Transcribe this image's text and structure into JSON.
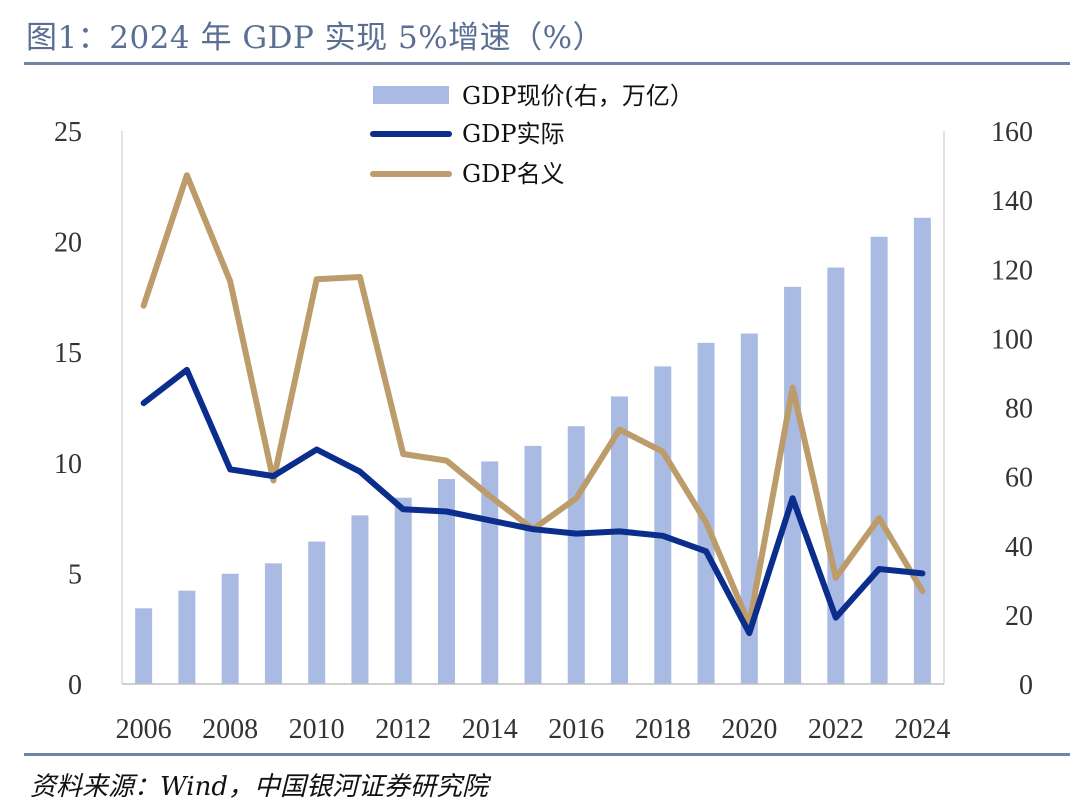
{
  "title": "图1：2024 年 GDP 实现 5%增速（%）",
  "source": "资料来源：Wind，中国银河证券研究院",
  "colors": {
    "bars": "#a9bae3",
    "real_line": "#0b2d8c",
    "nominal_line": "#bd9c6c",
    "rule": "#6f84a8",
    "title": "#5a6f93"
  },
  "chart_data": {
    "type": "bar+line",
    "title": "图1：2024 年 GDP 实现 5%增速（%）",
    "categories": [
      2006,
      2007,
      2008,
      2009,
      2010,
      2011,
      2012,
      2013,
      2014,
      2015,
      2016,
      2017,
      2018,
      2019,
      2020,
      2021,
      2022,
      2023,
      2024
    ],
    "x_tick_labels": [
      "2006",
      "2008",
      "2010",
      "2012",
      "2014",
      "2016",
      "2018",
      "2020",
      "2022",
      "2024"
    ],
    "left_axis": {
      "ylim": [
        0,
        25
      ],
      "ticks": [
        "0",
        "5",
        "10",
        "15",
        "20",
        "25"
      ]
    },
    "right_axis": {
      "ylim": [
        0,
        160
      ],
      "ticks": [
        "0",
        "20",
        "40",
        "60",
        "80",
        "100",
        "120",
        "140",
        "160"
      ]
    },
    "legend": [
      "GDP现价(右，万亿）",
      "GDP实际",
      "GDP名义"
    ],
    "series": [
      {
        "name": "GDP现价(右，万亿）",
        "type": "bar",
        "axis": "right",
        "values": [
          21.9,
          27.0,
          31.9,
          34.9,
          41.2,
          48.8,
          53.9,
          59.3,
          64.4,
          68.9,
          74.6,
          83.2,
          91.9,
          98.7,
          101.4,
          114.9,
          120.5,
          129.4,
          134.9
        ]
      },
      {
        "name": "GDP实际",
        "type": "line",
        "axis": "left",
        "values": [
          12.7,
          14.2,
          9.7,
          9.4,
          10.6,
          9.6,
          7.9,
          7.8,
          7.4,
          7.0,
          6.8,
          6.9,
          6.7,
          6.0,
          2.3,
          8.4,
          3.0,
          5.2,
          5.0
        ]
      },
      {
        "name": "GDP名义",
        "type": "line",
        "axis": "left",
        "values": [
          17.1,
          23.0,
          18.2,
          9.2,
          18.3,
          18.4,
          10.4,
          10.1,
          8.5,
          7.0,
          8.4,
          11.5,
          10.5,
          7.3,
          2.7,
          13.4,
          4.8,
          7.5,
          4.2
        ]
      }
    ]
  }
}
